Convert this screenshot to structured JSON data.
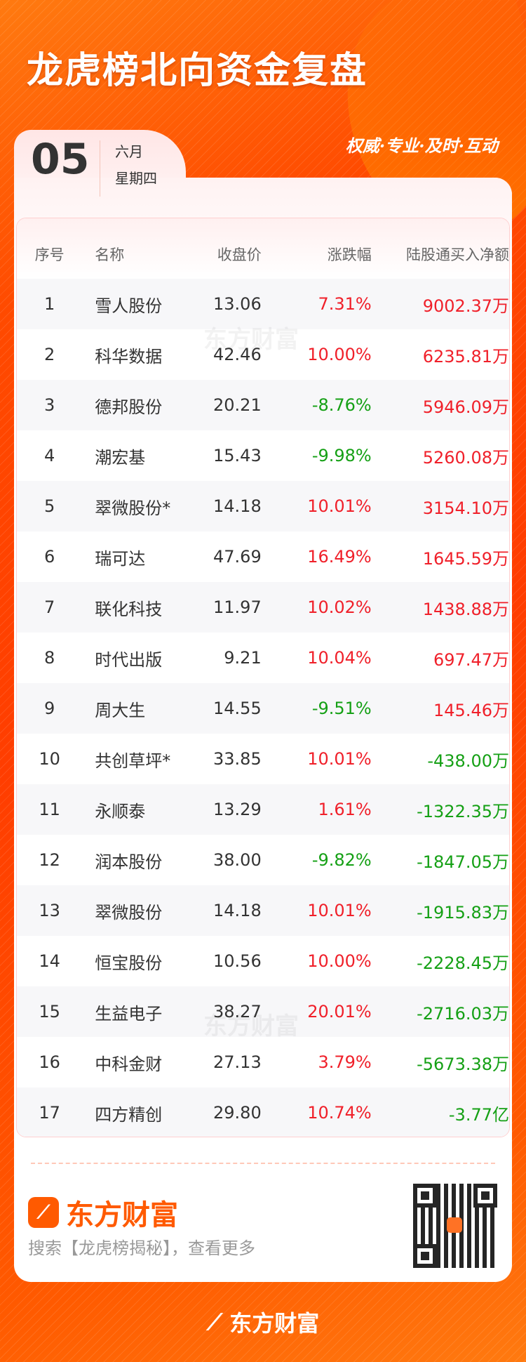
{
  "header": {
    "title": "龙虎榜北向资金复盘",
    "slogan": "权威·专业·及时·互动"
  },
  "date": {
    "day": "05",
    "month": "六月",
    "weekday": "星期四"
  },
  "table": {
    "columns": [
      "序号",
      "名称",
      "收盘价",
      "涨跌幅",
      "陆股通买入净额"
    ],
    "rows": [
      {
        "rank": "1",
        "name": "雪人股份",
        "price": "13.06",
        "change": "7.31%",
        "net": "9002.37万",
        "change_dir": "up",
        "net_dir": "up"
      },
      {
        "rank": "2",
        "name": "科华数据",
        "price": "42.46",
        "change": "10.00%",
        "net": "6235.81万",
        "change_dir": "up",
        "net_dir": "up"
      },
      {
        "rank": "3",
        "name": "德邦股份",
        "price": "20.21",
        "change": "-8.76%",
        "net": "5946.09万",
        "change_dir": "down",
        "net_dir": "up"
      },
      {
        "rank": "4",
        "name": "潮宏基",
        "price": "15.43",
        "change": "-9.98%",
        "net": "5260.08万",
        "change_dir": "down",
        "net_dir": "up"
      },
      {
        "rank": "5",
        "name": "翠微股份*",
        "price": "14.18",
        "change": "10.01%",
        "net": "3154.10万",
        "change_dir": "up",
        "net_dir": "up"
      },
      {
        "rank": "6",
        "name": "瑞可达",
        "price": "47.69",
        "change": "16.49%",
        "net": "1645.59万",
        "change_dir": "up",
        "net_dir": "up"
      },
      {
        "rank": "7",
        "name": "联化科技",
        "price": "11.97",
        "change": "10.02%",
        "net": "1438.88万",
        "change_dir": "up",
        "net_dir": "up"
      },
      {
        "rank": "8",
        "name": "时代出版",
        "price": "9.21",
        "change": "10.04%",
        "net": "697.47万",
        "change_dir": "up",
        "net_dir": "up"
      },
      {
        "rank": "9",
        "name": "周大生",
        "price": "14.55",
        "change": "-9.51%",
        "net": "145.46万",
        "change_dir": "down",
        "net_dir": "up"
      },
      {
        "rank": "10",
        "name": "共创草坪*",
        "price": "33.85",
        "change": "10.01%",
        "net": "-438.00万",
        "change_dir": "up",
        "net_dir": "down"
      },
      {
        "rank": "11",
        "name": "永顺泰",
        "price": "13.29",
        "change": "1.61%",
        "net": "-1322.35万",
        "change_dir": "up",
        "net_dir": "down"
      },
      {
        "rank": "12",
        "name": "润本股份",
        "price": "38.00",
        "change": "-9.82%",
        "net": "-1847.05万",
        "change_dir": "down",
        "net_dir": "down"
      },
      {
        "rank": "13",
        "name": "翠微股份",
        "price": "14.18",
        "change": "10.01%",
        "net": "-1915.83万",
        "change_dir": "up",
        "net_dir": "down"
      },
      {
        "rank": "14",
        "name": "恒宝股份",
        "price": "10.56",
        "change": "10.00%",
        "net": "-2228.45万",
        "change_dir": "up",
        "net_dir": "down"
      },
      {
        "rank": "15",
        "name": "生益电子",
        "price": "38.27",
        "change": "20.01%",
        "net": "-2716.03万",
        "change_dir": "up",
        "net_dir": "down"
      },
      {
        "rank": "16",
        "name": "中科金财",
        "price": "27.13",
        "change": "3.79%",
        "net": "-5673.38万",
        "change_dir": "up",
        "net_dir": "down"
      },
      {
        "rank": "17",
        "name": "四方精创",
        "price": "29.80",
        "change": "10.74%",
        "net": "-3.77亿",
        "change_dir": "up",
        "net_dir": "down"
      }
    ]
  },
  "watermark": "东方财富",
  "footer": {
    "brand": "东方财富",
    "search_hint": "搜索【龙虎榜揭秘】，查看更多",
    "bottom_brand": "东方财富"
  },
  "colors": {
    "up": "#f0202a",
    "down": "#15a015",
    "brand": "#ff5a00"
  },
  "icons": {
    "brand_logo": "eastmoney-logo-icon",
    "qr": "qr-code-icon"
  }
}
